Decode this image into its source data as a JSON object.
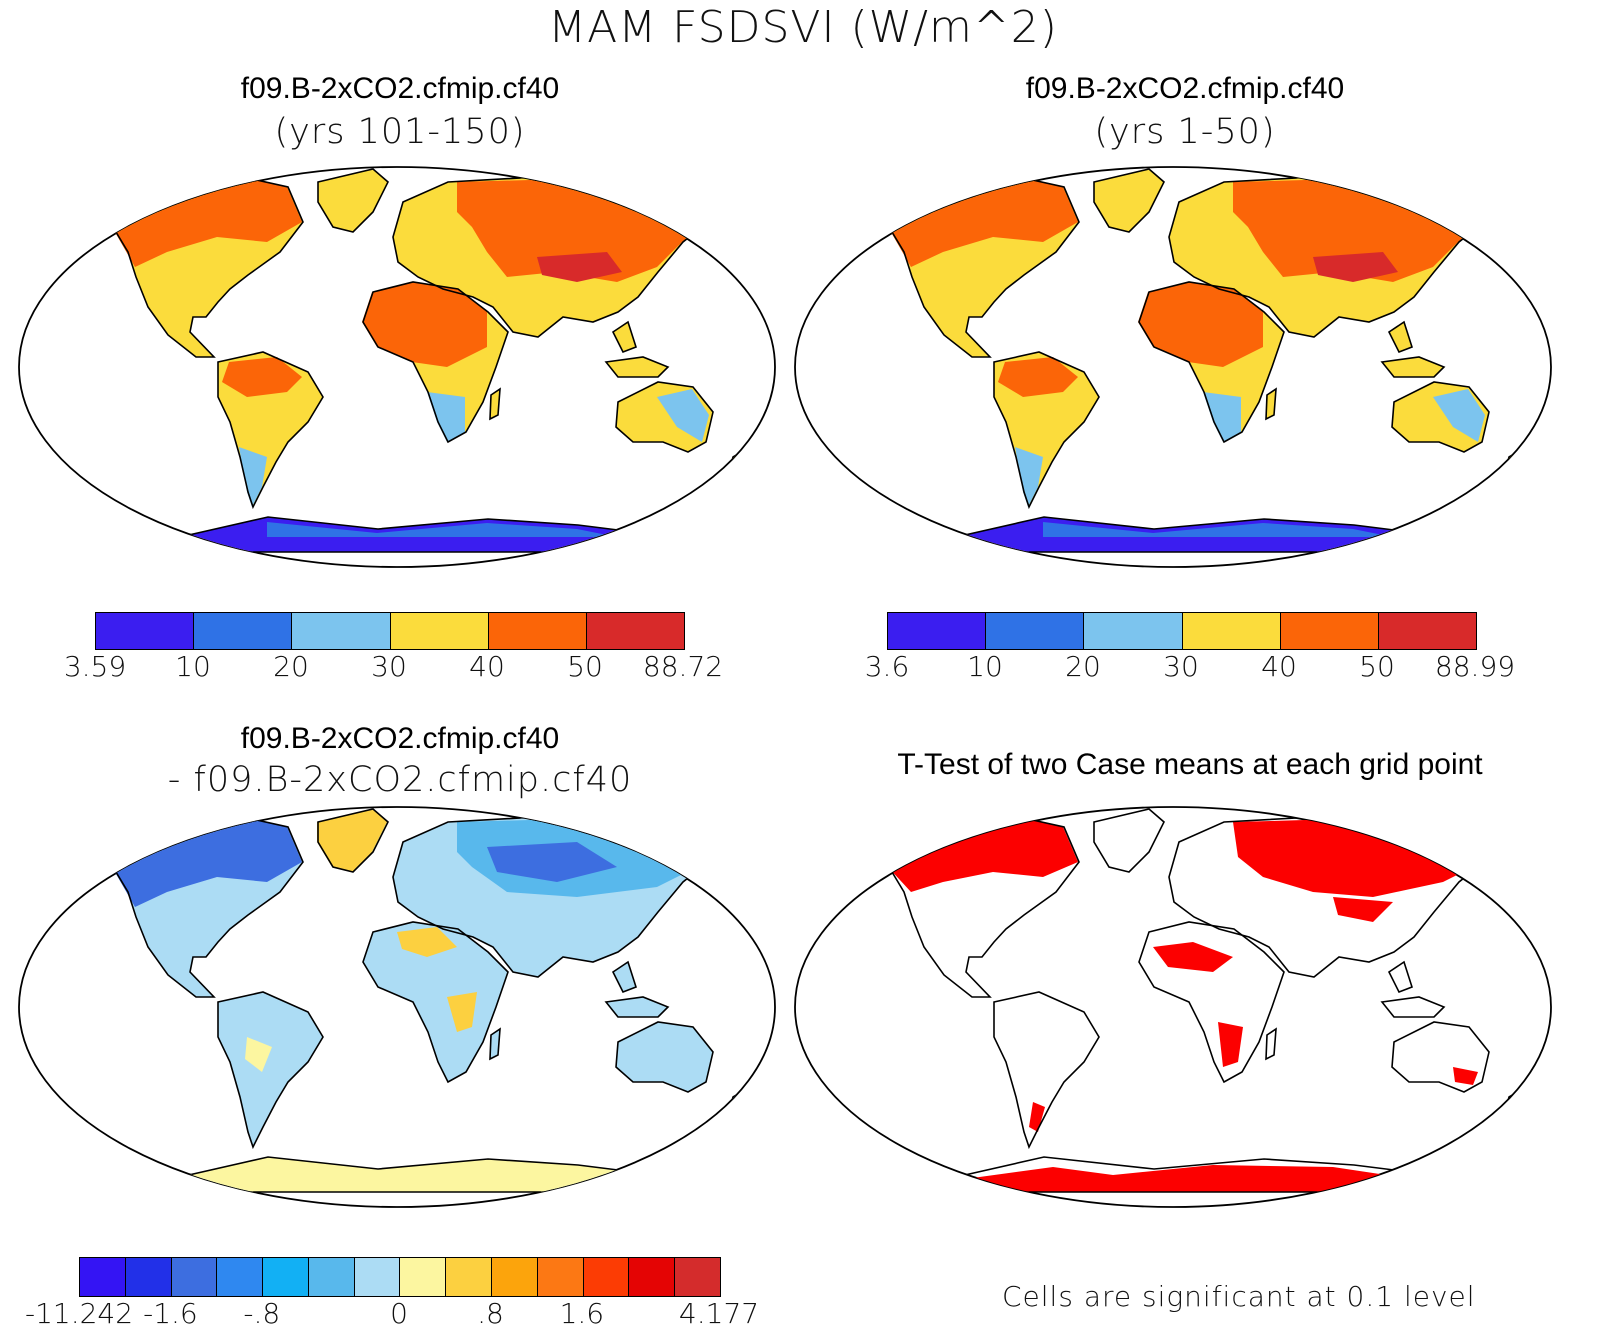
{
  "title": "MAM FSDSVI (W/m^2)",
  "panels": [
    {
      "title": "f09.B-2xCO2.cfmip.cf40",
      "subtitle": "(yrs 101-150)"
    },
    {
      "title": "f09.B-2xCO2.cfmip.cf40",
      "subtitle": "(yrs 1-50)"
    },
    {
      "title": "f09.B-2xCO2.cfmip.cf40",
      "subtitle": "- f09.B-2xCO2.cfmip.cf40"
    },
    {
      "title": "T-Test of two Case means at each grid point",
      "subtitle": ""
    }
  ],
  "colorbars": [
    {
      "colors": [
        "#3b1ef0",
        "#2f72e6",
        "#7cc4ee",
        "#fbdc3c",
        "#fb6508",
        "#d82a2a"
      ],
      "labels": [
        "3.59",
        "10",
        "20",
        "30",
        "40",
        "50",
        "88.72"
      ]
    },
    {
      "colors": [
        "#3b1ef0",
        "#2f72e6",
        "#7cc4ee",
        "#fbdc3c",
        "#fb6508",
        "#d82a2a"
      ],
      "labels": [
        "3.6",
        "10",
        "20",
        "30",
        "40",
        "50",
        "88.99"
      ]
    },
    {
      "colors": [
        "#3414f4",
        "#2230e8",
        "#3d6ee0",
        "#2f88f0",
        "#12b0f4",
        "#58b8ec",
        "#acdcf4",
        "#fcf6a0",
        "#fcd040",
        "#fca40c",
        "#fc7814",
        "#fc3c04",
        "#e40404",
        "#d42c2c"
      ],
      "labels": [
        "-11.242",
        "-1.6",
        "-.8",
        "0",
        ".8",
        "1.6",
        "4.177"
      ]
    }
  ],
  "note": "Cells are significant at 0.1 level"
}
